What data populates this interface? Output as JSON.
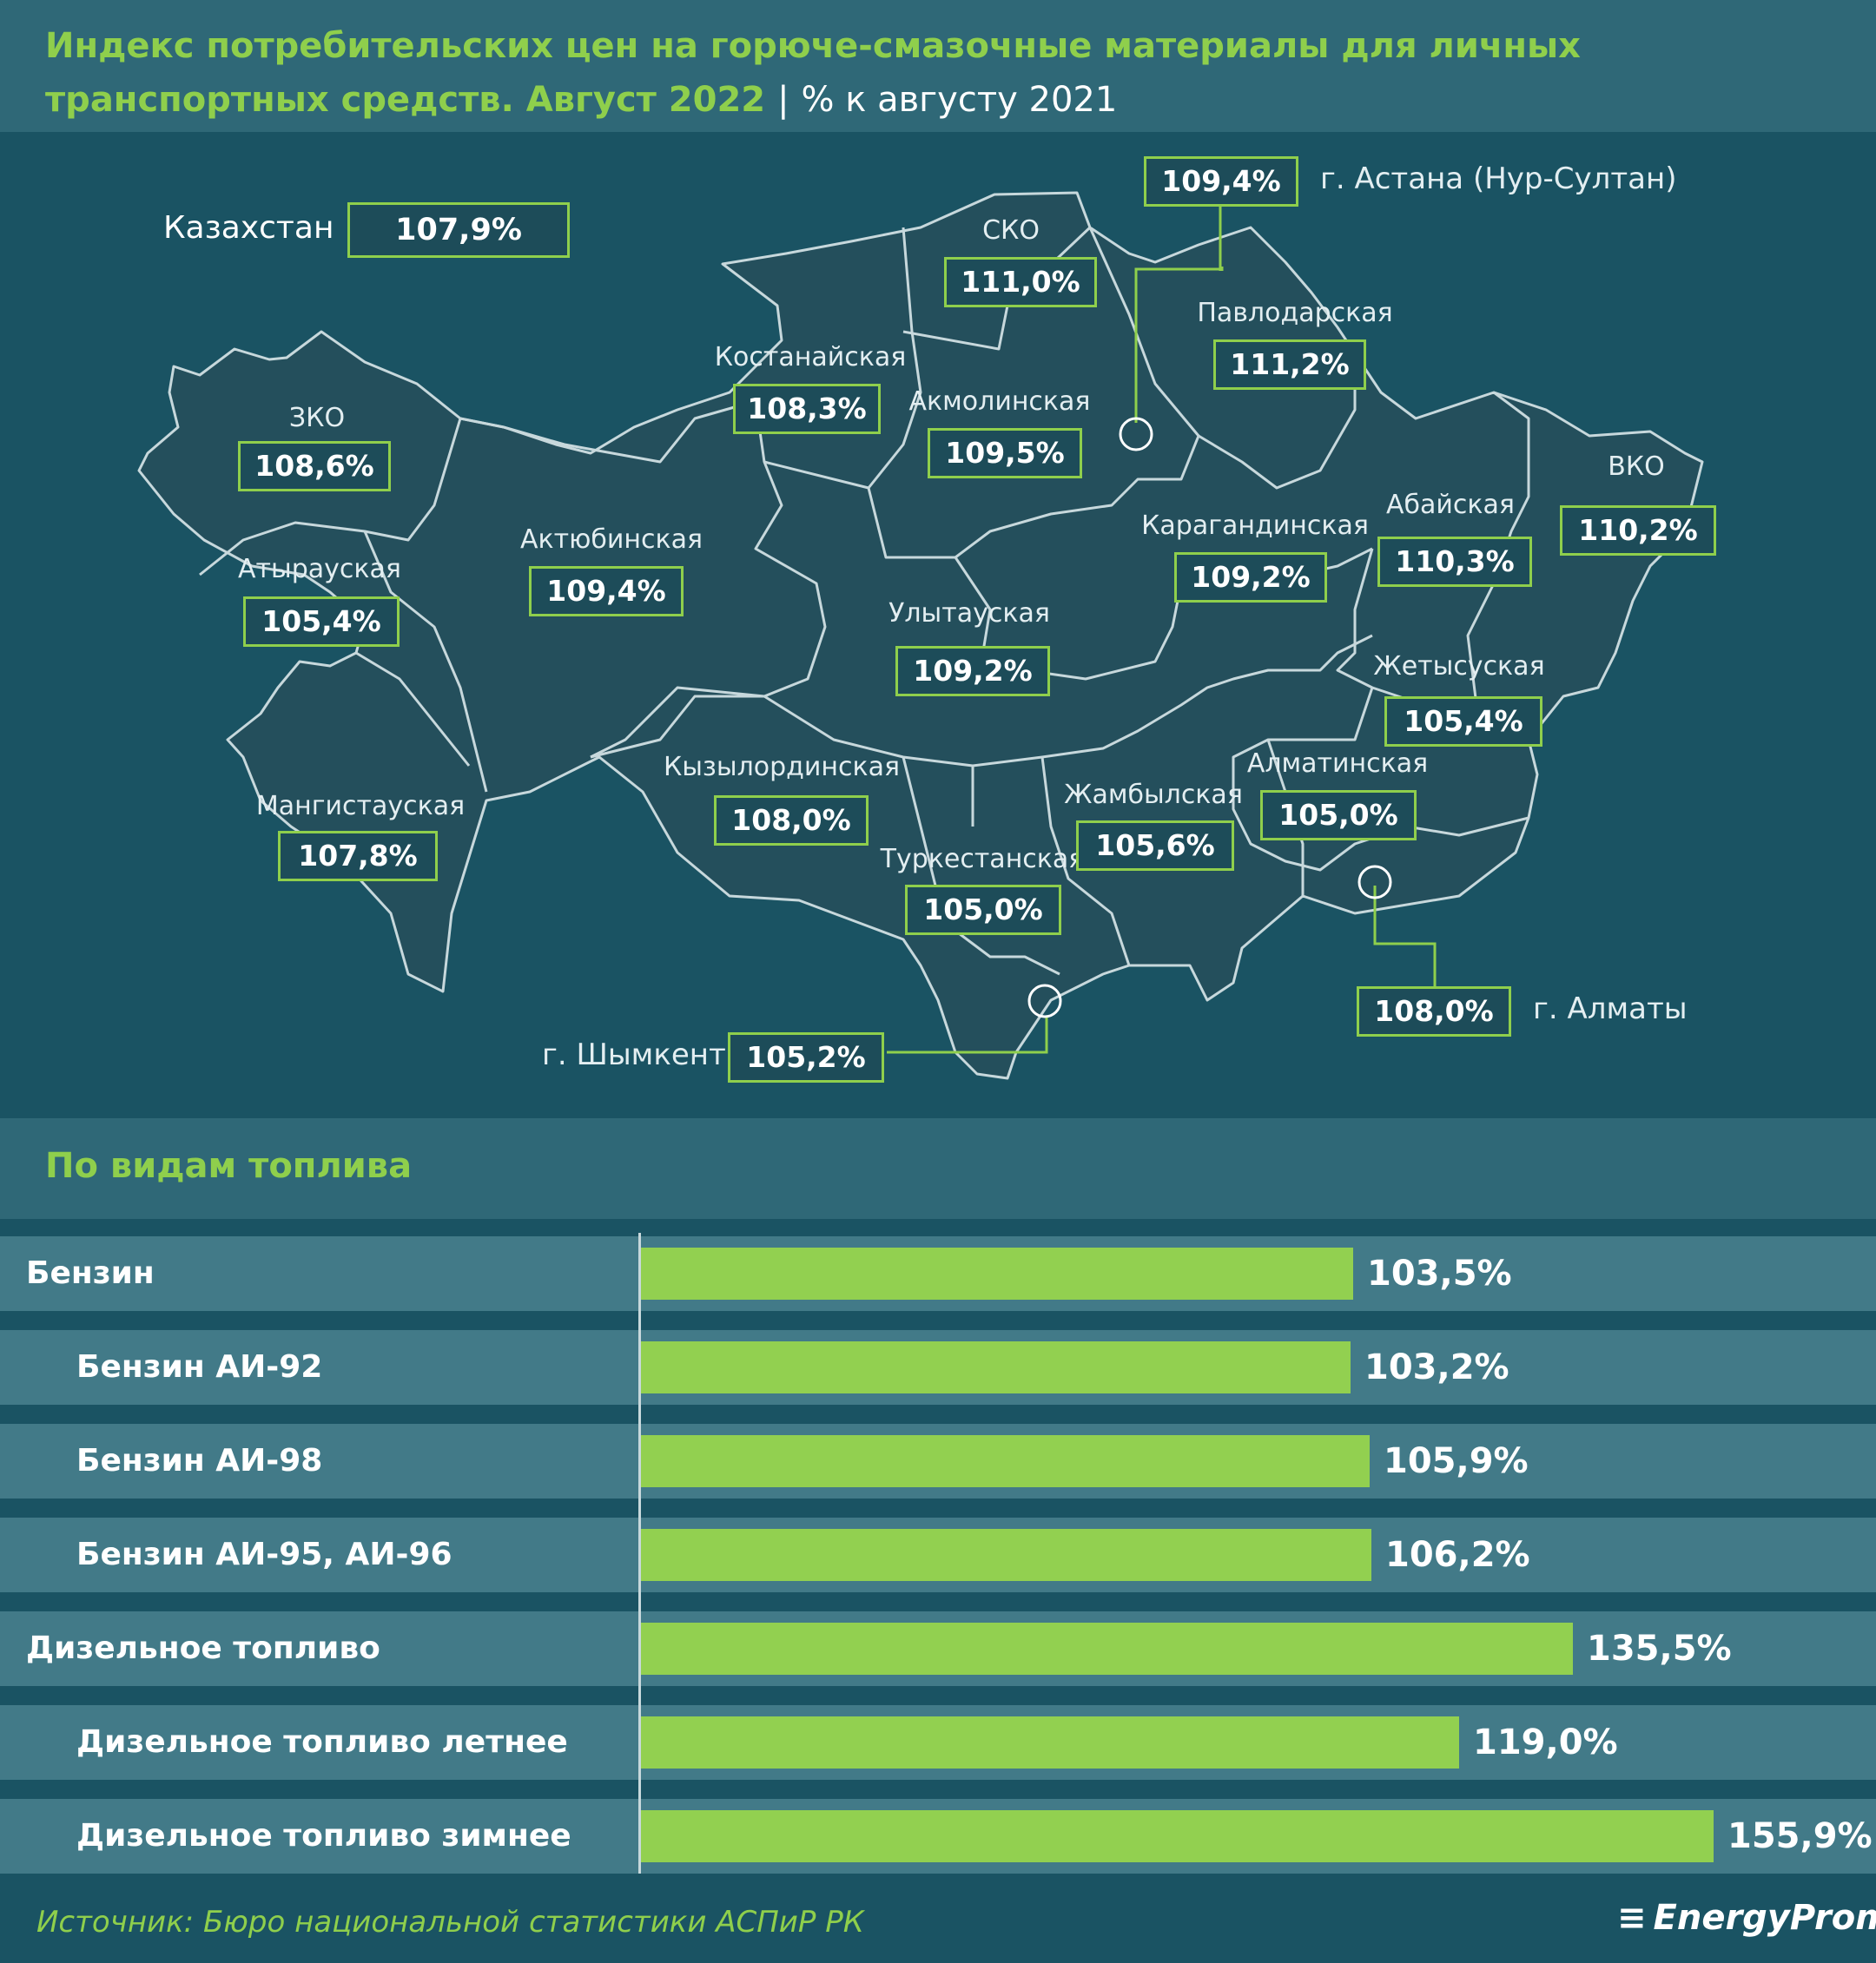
{
  "header": {
    "title": "Индекс потребительских цен на горюче-смазочные материалы для личных транспортных средств. Август 2022",
    "separator": "|",
    "subtitle": "% к августу 2021"
  },
  "kazakhstan": {
    "label": "Казахстан",
    "value": "107,9%"
  },
  "regions": [
    {
      "name": "ЗКО",
      "value": "108,6%"
    },
    {
      "name": "Атырауская",
      "value": "105,4%"
    },
    {
      "name": "Мангистауская",
      "value": "107,8%"
    },
    {
      "name": "Актюбинская",
      "value": "109,4%"
    },
    {
      "name": "Костанайская",
      "value": "108,3%"
    },
    {
      "name": "СКО",
      "value": "111,0%"
    },
    {
      "name": "Акмолинская",
      "value": "109,5%"
    },
    {
      "name": "Павлодарская",
      "value": "111,2%"
    },
    {
      "name": "Карагандинская",
      "value": "109,2%"
    },
    {
      "name": "Абайская",
      "value": "110,3%"
    },
    {
      "name": "ВКО",
      "value": "110,2%"
    },
    {
      "name": "Улытауская",
      "value": "109,2%"
    },
    {
      "name": "Кызылординская",
      "value": "108,0%"
    },
    {
      "name": "Жетысуская",
      "value": "105,4%"
    },
    {
      "name": "Алматинская",
      "value": "105,0%"
    },
    {
      "name": "Жамбылская",
      "value": "105,6%"
    },
    {
      "name": "Туркестанская",
      "value": "105,0%"
    }
  ],
  "cities": [
    {
      "name": "г. Астана (Нур-Султан)",
      "value": "109,4%"
    },
    {
      "name": "г. Алматы",
      "value": "108,0%"
    },
    {
      "name": "г. Шымкент",
      "value": "105,2%"
    }
  ],
  "fuel_section_title": "По видам топлива",
  "chart_data": {
    "type": "bar",
    "orientation": "horizontal",
    "title": "По видам топлива",
    "categories": [
      "Бензин",
      "Бензин АИ-92",
      "Бензин АИ-98",
      "Бензин АИ-95, АИ-96",
      "Дизельное топливо",
      "Дизельное топливо летнее",
      "Дизельное топливо зимнее"
    ],
    "values": [
      103.5,
      103.2,
      105.9,
      106.2,
      135.5,
      119.0,
      155.9
    ],
    "value_labels": [
      "103,5%",
      "103,2%",
      "105,9%",
      "106,2%",
      "135,5%",
      "119,0%",
      "155,9%"
    ],
    "indented": [
      false,
      true,
      true,
      true,
      false,
      true,
      true
    ],
    "bar_color": "#92d050"
  },
  "footer": {
    "source": "Источник: Бюро национальной статистики АСПиР РК",
    "logo": "EnergyProm"
  },
  "colors": {
    "background": "#1a5363",
    "header": "#2f6877",
    "accent": "#8fcf4c",
    "map_fill": "#244f5c",
    "row": "#427a88"
  }
}
